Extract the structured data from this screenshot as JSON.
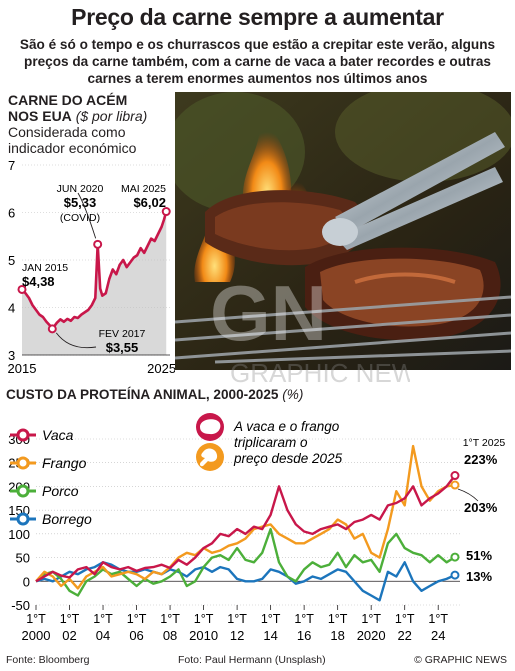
{
  "title": "Preço da carne sempre a aumentar",
  "subtitle": "São é só o tempo e os churrascos que estão a crepitar este verão, alguns preços da carne também, com a carne de vaca a bater recordes e outras carnes a terem enormes aumentos nos últimos anos",
  "beef_section": {
    "heading_line1": "CARNE DO ACÉM",
    "heading_line2": "NOS EUA",
    "unit": "($ por libra)",
    "note_line1": "Considerada como",
    "note_line2": "indicador económico"
  },
  "protein_section": {
    "heading": "CUSTO DA PROTEÍNA ANIMAL, 2000-2025",
    "unit": "(%)"
  },
  "photo_credit": "Foto: Paul Hermann (Unsplash)",
  "source": "Fonte: Bloomberg",
  "brand": "© GRAPHIC NEWS",
  "watermark_letters": "GN",
  "watermark_text": "GRAPHIC NEWS",
  "colors": {
    "beef": "#c8174a",
    "chicken": "#f39a1f",
    "pork": "#4caf3a",
    "lamb": "#1c75bc",
    "area": "#d9d9d9"
  },
  "chart_data": [
    {
      "type": "area",
      "y_ticks": [
        "3",
        "4",
        "5",
        "6",
        "7"
      ],
      "x_ticks": [
        "2015",
        "2025"
      ],
      "ylim": [
        3,
        7
      ],
      "xlim": [
        2015,
        2025.6
      ],
      "x": [
        2015,
        2015.25,
        2015.5,
        2015.75,
        2016,
        2016.25,
        2016.5,
        2016.75,
        2017,
        2017.17,
        2017.5,
        2017.75,
        2018,
        2018.25,
        2018.5,
        2018.75,
        2019,
        2019.25,
        2019.5,
        2019.75,
        2020,
        2020.25,
        2020.42,
        2020.6,
        2020.75,
        2021,
        2021.25,
        2021.5,
        2021.75,
        2022,
        2022.25,
        2022.5,
        2022.75,
        2023,
        2023.25,
        2023.5,
        2023.75,
        2024,
        2024.25,
        2024.5,
        2024.75,
        2025,
        2025.17,
        2025.33
      ],
      "y": [
        4.38,
        4.3,
        4.2,
        4.05,
        3.95,
        3.85,
        3.8,
        3.7,
        3.62,
        3.55,
        3.68,
        3.75,
        3.7,
        3.76,
        3.72,
        3.8,
        3.78,
        3.85,
        3.9,
        3.95,
        4.05,
        4.2,
        5.33,
        4.4,
        4.25,
        4.3,
        4.6,
        4.8,
        4.7,
        4.9,
        5.0,
        4.85,
        4.95,
        5.05,
        5.1,
        5.25,
        5.15,
        5.3,
        5.45,
        5.4,
        5.55,
        5.7,
        5.85,
        6.02
      ],
      "annotations": [
        {
          "label": "JAN 2015",
          "value": "$4,38"
        },
        {
          "label": "JUN 2020",
          "value": "$5,33",
          "note": "(COVID)"
        },
        {
          "label": "MAI 2025",
          "value": "$6,02"
        },
        {
          "label": "FEV 2017",
          "value": "$3,55"
        }
      ]
    },
    {
      "type": "line",
      "ylim": [
        -50,
        300
      ],
      "y_ticks": [
        "300",
        "250",
        "200",
        "150",
        "100",
        "50",
        "0",
        "-50"
      ],
      "x_ticks_top": [
        "1°T",
        "1°T",
        "1°T",
        "1°T",
        "1°T",
        "1°T",
        "1°T",
        "1°T",
        "1°T",
        "1°T",
        "1°T",
        "1°T",
        "1°T"
      ],
      "x_ticks_bottom": [
        "2000",
        "02",
        "04",
        "06",
        "08",
        "2010",
        "12",
        "14",
        "16",
        "18",
        "2020",
        "22",
        "24"
      ],
      "x": [
        2000,
        2000.5,
        2001,
        2001.5,
        2002,
        2002.5,
        2003,
        2003.5,
        2004,
        2004.5,
        2005,
        2005.5,
        2006,
        2006.5,
        2007,
        2007.5,
        2008,
        2008.5,
        2009,
        2009.5,
        2010,
        2010.5,
        2011,
        2011.5,
        2012,
        2012.5,
        2013,
        2013.5,
        2014,
        2014.5,
        2015,
        2015.5,
        2016,
        2016.5,
        2017,
        2017.5,
        2018,
        2018.5,
        2019,
        2019.5,
        2020,
        2020.5,
        2021,
        2021.5,
        2022,
        2022.5,
        2023,
        2023.5,
        2024,
        2024.5,
        2025
      ],
      "series": [
        {
          "name": "Vaca",
          "values": [
            0,
            10,
            20,
            12,
            8,
            25,
            30,
            15,
            40,
            30,
            25,
            30,
            22,
            28,
            30,
            35,
            28,
            45,
            35,
            50,
            70,
            80,
            100,
            95,
            110,
            100,
            115,
            110,
            140,
            200,
            150,
            120,
            105,
            100,
            110,
            115,
            120,
            110,
            125,
            130,
            140,
            130,
            160,
            165,
            175,
            200,
            160,
            175,
            185,
            200,
            223
          ]
        },
        {
          "name": "Frango",
          "values": [
            0,
            20,
            10,
            -10,
            5,
            -15,
            10,
            20,
            30,
            10,
            15,
            20,
            15,
            5,
            20,
            15,
            30,
            50,
            60,
            55,
            70,
            60,
            65,
            75,
            80,
            90,
            110,
            115,
            120,
            100,
            90,
            80,
            80,
            90,
            100,
            110,
            130,
            120,
            90,
            100,
            60,
            50,
            110,
            190,
            160,
            285,
            200,
            170,
            190,
            200,
            203
          ]
        },
        {
          "name": "Porco",
          "values": [
            0,
            15,
            20,
            5,
            -20,
            -30,
            0,
            10,
            25,
            15,
            20,
            5,
            -10,
            5,
            -5,
            0,
            10,
            25,
            -10,
            0,
            30,
            50,
            55,
            45,
            70,
            45,
            40,
            60,
            110,
            40,
            10,
            0,
            25,
            40,
            30,
            35,
            60,
            30,
            55,
            40,
            45,
            20,
            80,
            100,
            70,
            60,
            55,
            40,
            55,
            40,
            51
          ]
        },
        {
          "name": "Borrego",
          "values": [
            0,
            5,
            0,
            10,
            20,
            15,
            25,
            30,
            40,
            35,
            25,
            20,
            20,
            25,
            20,
            15,
            25,
            20,
            10,
            25,
            30,
            20,
            30,
            25,
            5,
            0,
            0,
            5,
            25,
            20,
            10,
            -5,
            0,
            10,
            5,
            15,
            25,
            20,
            0,
            -20,
            -30,
            -40,
            20,
            10,
            40,
            0,
            -20,
            -10,
            0,
            5,
            13
          ]
        }
      ],
      "end_labels": {
        "Vaca": "223%",
        "Frango": "203%",
        "Porco": "51%",
        "Borrego": "13%"
      },
      "end_period": "1°T 2025",
      "annotation": "A vaca e o frango triplicaram o preço desde 2025"
    }
  ]
}
